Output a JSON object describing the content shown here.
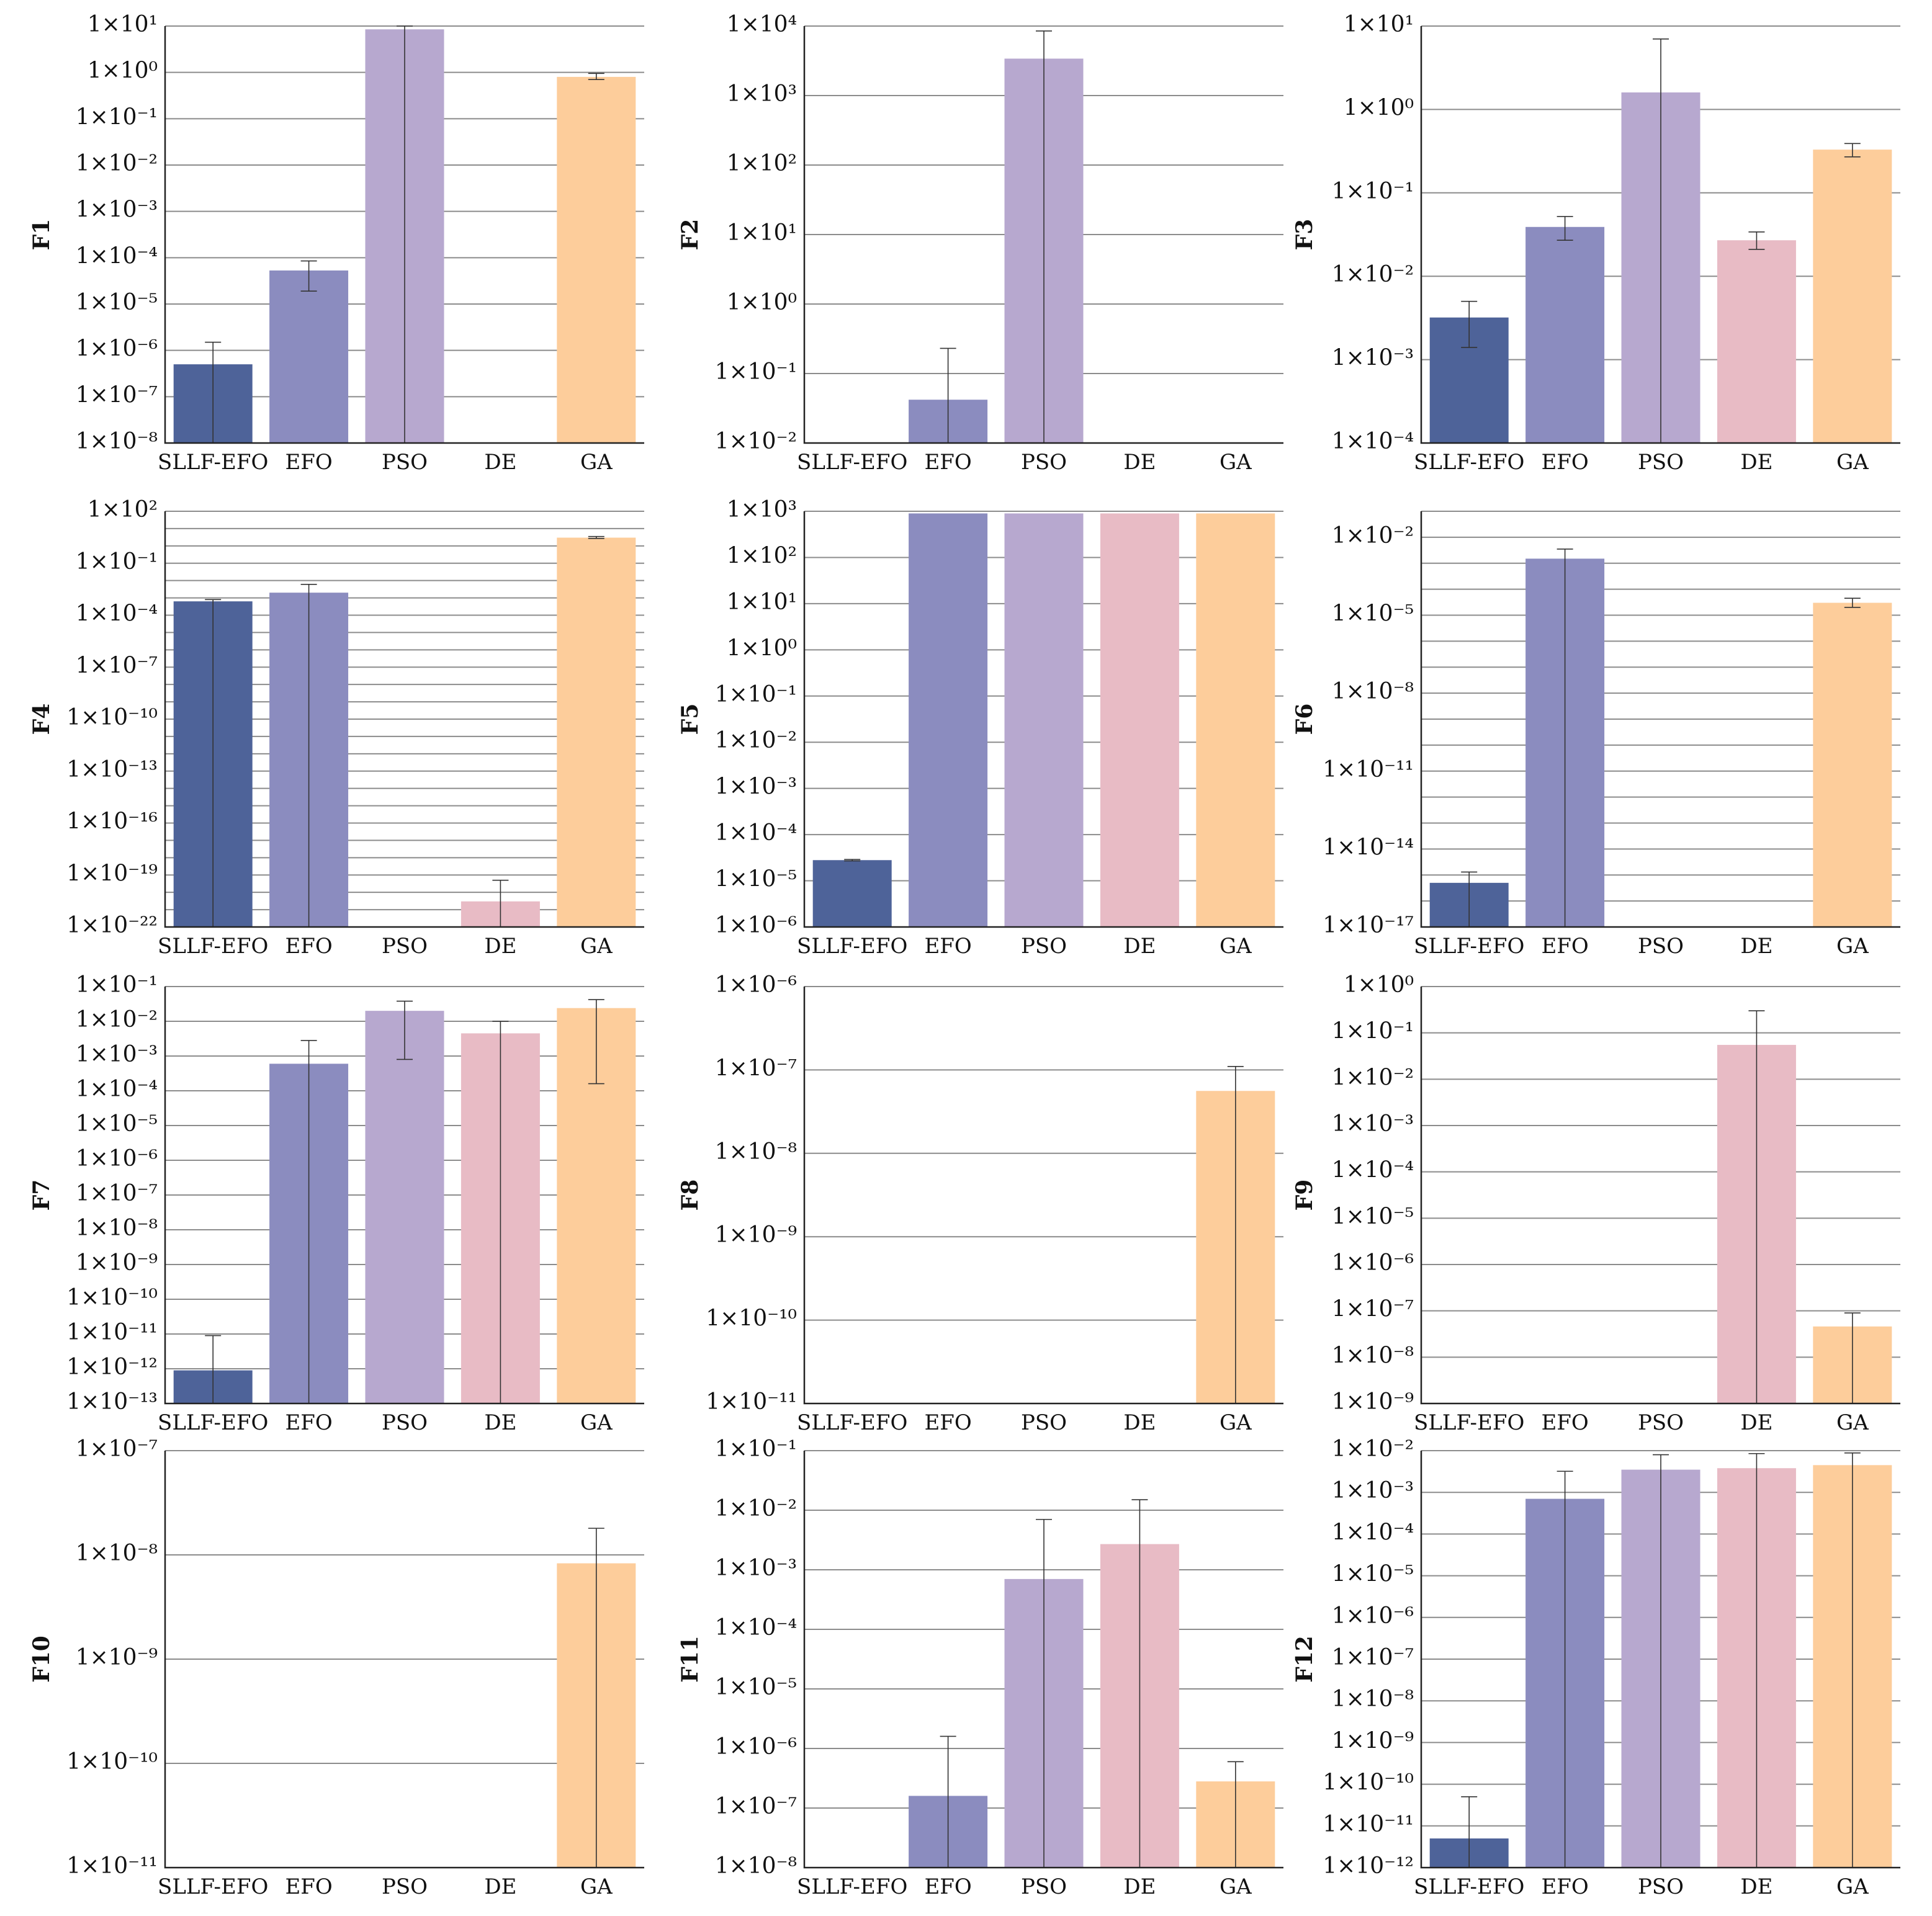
{
  "figure": {
    "categories": [
      "SLLF-EFO",
      "EFO",
      "PSO",
      "DE",
      "GA"
    ],
    "colors": [
      "#4e6399",
      "#8b8cbf",
      "#b7a8cf",
      "#e8bbc5",
      "#fdcd9b"
    ],
    "grid": true
  },
  "chart_data": [
    {
      "type": "bar",
      "ylabel": "F1",
      "yscale": "log",
      "yexp": [
        -8,
        1
      ],
      "categories": [
        "SLLF-EFO",
        "EFO",
        "PSO",
        "DE",
        "GA"
      ],
      "values": [
        5e-07,
        5.3e-05,
        8.5,
        null,
        0.8
      ],
      "err_low": [
        1e-08,
        1.9e-05,
        1e-08,
        null,
        0.7
      ],
      "err_high": [
        1.5e-06,
        8.5e-05,
        20,
        null,
        0.95
      ]
    },
    {
      "type": "bar",
      "ylabel": "F2",
      "yscale": "log",
      "yexp": [
        -2,
        4
      ],
      "categories": [
        "SLLF-EFO",
        "EFO",
        "PSO",
        "DE",
        "GA"
      ],
      "values": [
        null,
        0.042,
        3400,
        null,
        null
      ],
      "err_low": [
        null,
        0.01,
        0.01,
        null,
        null
      ],
      "err_high": [
        null,
        0.23,
        8500,
        null,
        null
      ]
    },
    {
      "type": "bar",
      "ylabel": "F3",
      "yscale": "log",
      "yexp": [
        -4,
        1
      ],
      "categories": [
        "SLLF-EFO",
        "EFO",
        "PSO",
        "DE",
        "GA"
      ],
      "values": [
        0.0032,
        0.039,
        1.6,
        0.027,
        0.33
      ],
      "err_low": [
        0.0014,
        0.027,
        0.0001,
        0.021,
        0.27
      ],
      "err_high": [
        0.005,
        0.052,
        7,
        0.034,
        0.39
      ]
    },
    {
      "type": "bar",
      "ylabel": "F4",
      "yscale": "log",
      "yexp": [
        -22,
        2
      ],
      "categories": [
        "SLLF-EFO",
        "EFO",
        "PSO",
        "DE",
        "GA"
      ],
      "values": [
        0.00063,
        0.002,
        null,
        3e-21,
        3
      ],
      "err_low": [
        1e-22,
        1e-22,
        null,
        1e-22,
        2.7
      ],
      "err_high": [
        0.0008,
        0.006,
        null,
        5e-20,
        3.5
      ]
    },
    {
      "type": "bar",
      "ylabel": "F5",
      "yscale": "log",
      "yexp": [
        -6,
        3
      ],
      "categories": [
        "SLLF-EFO",
        "EFO",
        "PSO",
        "DE",
        "GA"
      ],
      "values": [
        2.8e-05,
        898,
        898,
        898,
        898
      ],
      "err_low": [
        2.7e-05,
        null,
        null,
        null,
        null
      ],
      "err_high": [
        2.9e-05,
        null,
        null,
        null,
        null
      ]
    },
    {
      "type": "bar",
      "ylabel": "F6",
      "yscale": "log",
      "yexp": [
        -17,
        -1
      ],
      "categories": [
        "SLLF-EFO",
        "EFO",
        "PSO",
        "DE",
        "GA"
      ],
      "values": [
        5e-16,
        0.0015,
        null,
        null,
        3e-05
      ],
      "err_low": [
        1e-17,
        1e-17,
        null,
        null,
        2e-05
      ],
      "err_high": [
        1.3e-15,
        0.0035,
        null,
        null,
        4.5e-05
      ]
    },
    {
      "type": "bar",
      "ylabel": "F7",
      "yscale": "log",
      "yexp": [
        -13,
        -1
      ],
      "categories": [
        "SLLF-EFO",
        "EFO",
        "PSO",
        "DE",
        "GA"
      ],
      "values": [
        9e-13,
        0.0006,
        0.02,
        0.0045,
        0.024
      ],
      "err_low": [
        1e-13,
        1e-13,
        0.0008,
        1e-13,
        0.00016
      ],
      "err_high": [
        9e-12,
        0.0028,
        0.038,
        0.01,
        0.042
      ]
    },
    {
      "type": "bar",
      "ylabel": "F8",
      "yscale": "log",
      "yexp": [
        -11,
        -6
      ],
      "categories": [
        "SLLF-EFO",
        "EFO",
        "PSO",
        "DE",
        "GA"
      ],
      "values": [
        null,
        null,
        null,
        null,
        5.6e-08
      ],
      "err_low": [
        null,
        null,
        null,
        null,
        1e-11
      ],
      "err_high": [
        null,
        null,
        null,
        null,
        1.1e-07
      ]
    },
    {
      "type": "bar",
      "ylabel": "F9",
      "yscale": "log",
      "yexp": [
        -9,
        0
      ],
      "categories": [
        "SLLF-EFO",
        "EFO",
        "PSO",
        "DE",
        "GA"
      ],
      "values": [
        null,
        null,
        null,
        0.055,
        4.6e-08
      ],
      "err_low": [
        null,
        null,
        null,
        1e-09,
        1e-09
      ],
      "err_high": [
        null,
        null,
        null,
        0.3,
        9e-08
      ]
    },
    {
      "type": "bar",
      "ylabel": "F10",
      "yscale": "log",
      "yexp": [
        -11,
        -7
      ],
      "categories": [
        "SLLF-EFO",
        "EFO",
        "PSO",
        "DE",
        "GA"
      ],
      "values": [
        null,
        null,
        null,
        null,
        8.3e-09
      ],
      "err_low": [
        null,
        null,
        null,
        null,
        1e-11
      ],
      "err_high": [
        null,
        null,
        null,
        null,
        1.8e-08
      ]
    },
    {
      "type": "bar",
      "ylabel": "F11",
      "yscale": "log",
      "yexp": [
        -8,
        -1
      ],
      "categories": [
        "SLLF-EFO",
        "EFO",
        "PSO",
        "DE",
        "GA"
      ],
      "values": [
        null,
        1.6e-07,
        0.0007,
        0.0027,
        2.8e-07
      ],
      "err_low": [
        null,
        1e-08,
        1e-08,
        1e-08,
        1e-08
      ],
      "err_high": [
        null,
        1.6e-06,
        0.007,
        0.015,
        6e-07
      ]
    },
    {
      "type": "bar",
      "ylabel": "F12",
      "yscale": "log",
      "yexp": [
        -12,
        -2
      ],
      "categories": [
        "SLLF-EFO",
        "EFO",
        "PSO",
        "DE",
        "GA"
      ],
      "values": [
        5e-12,
        0.0007,
        0.0035,
        0.0038,
        0.0045
      ],
      "err_low": [
        1e-12,
        1e-12,
        1e-12,
        1e-12,
        1e-12
      ],
      "err_high": [
        5e-11,
        0.0032,
        0.008,
        0.0085,
        0.0088
      ]
    }
  ]
}
